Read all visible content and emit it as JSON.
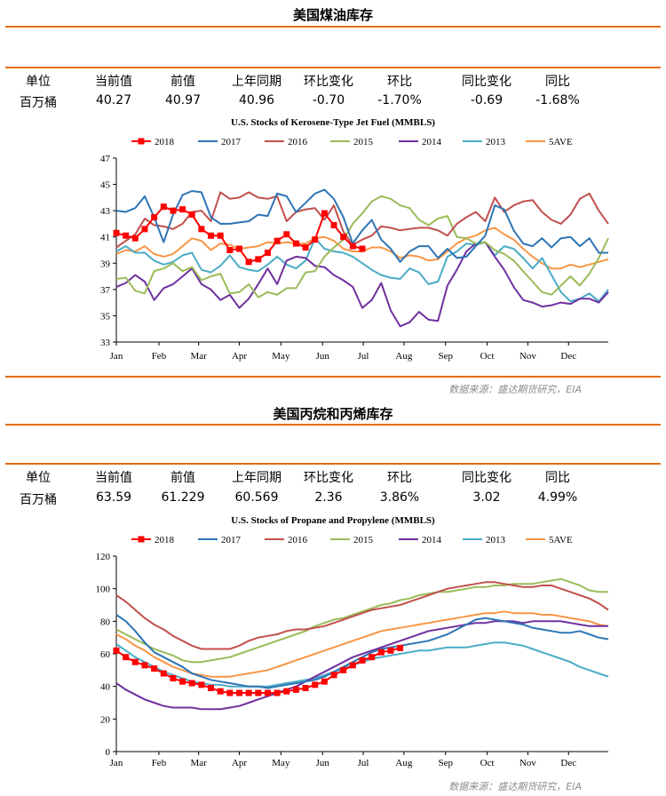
{
  "panels": [
    {
      "section_title": "美国煤油库存",
      "header": [
        "单位",
        "当前值",
        "前值",
        "上年同期",
        "环比变化",
        "环比",
        "同比变化",
        "同比"
      ],
      "values": [
        "百万桶",
        "40.27",
        "40.97",
        "40.96",
        "-0.70",
        "-1.70%",
        "-0.69",
        "-1.68%"
      ],
      "source": "数据来源：盛达期货研究，EIA",
      "chart_data": {
        "type": "line",
        "title": "U.S. Stocks of Kerosene-Type Jet Fuel (MMBLS)",
        "xlabel": "",
        "ylabel": "",
        "ylim": [
          33,
          47
        ],
        "yticks": [
          33,
          35,
          37,
          39,
          41,
          43,
          45,
          47
        ],
        "xlim": [
          1,
          53
        ],
        "x_ticks": [
          {
            "label": "Jan",
            "week": 1
          },
          {
            "label": "Feb",
            "week": 5.5
          },
          {
            "label": "Mar",
            "week": 9.7
          },
          {
            "label": "Apr",
            "week": 14
          },
          {
            "label": "May",
            "week": 18.4
          },
          {
            "label": "Jun",
            "week": 22.8
          },
          {
            "label": "Jul",
            "week": 27.1
          },
          {
            "label": "Aug",
            "week": 31.4
          },
          {
            "label": "Sep",
            "week": 35.8
          },
          {
            "label": "Oct",
            "week": 40.2
          },
          {
            "label": "Nov",
            "week": 44.5
          },
          {
            "label": "Dec",
            "week": 48.8
          }
        ],
        "legend_position": "top",
        "grid": false,
        "series": [
          {
            "name": "2018",
            "color": "#ff0000",
            "marker": "square",
            "x_start": 1,
            "values": [
              41.3,
              41.1,
              40.9,
              41.6,
              42.5,
              43.3,
              43.0,
              43.1,
              42.7,
              41.6,
              41.1,
              41.1,
              40.0,
              40.1,
              39.1,
              39.3,
              39.8,
              40.7,
              41.2,
              40.5,
              40.2,
              40.8,
              42.8,
              41.9,
              41.0,
              40.3,
              40.1
            ]
          },
          {
            "name": "2017",
            "color": "#2e75b6",
            "marker": "none",
            "x_start": 1,
            "values": [
              43.0,
              42.9,
              43.2,
              44.1,
              42.5,
              40.6,
              42.7,
              44.2,
              44.5,
              44.4,
              42.5,
              42.0,
              42.0,
              42.1,
              42.2,
              42.7,
              42.6,
              44.3,
              44.1,
              42.9,
              43.6,
              44.3,
              44.6,
              43.9,
              42.5,
              40.5,
              41.5,
              42.3,
              40.8,
              40.1,
              39.1,
              39.9,
              40.3,
              40.3,
              39.4,
              40.1,
              39.4,
              39.5,
              40.3,
              41.1,
              43.4,
              43.1,
              41.5,
              40.5,
              40.3,
              40.9,
              40.2,
              40.9,
              41.0,
              40.3,
              40.9,
              39.8,
              39.8
            ]
          },
          {
            "name": "2016",
            "color": "#c0504d",
            "marker": "none",
            "x_start": 1,
            "values": [
              40.2,
              40.7,
              41.2,
              42.4,
              41.9,
              41.8,
              41.6,
              42.0,
              42.9,
              43.0,
              42.2,
              44.4,
              43.9,
              44.0,
              44.4,
              44.0,
              43.9,
              44.1,
              42.2,
              42.9,
              43.1,
              43.2,
              42.3,
              43.4,
              41.4,
              40.4,
              40.8,
              41.1,
              41.8,
              41.7,
              41.5,
              41.6,
              41.7,
              41.7,
              41.5,
              41.1,
              42.0,
              42.5,
              42.9,
              42.2,
              44.0,
              42.9,
              43.4,
              43.7,
              43.8,
              42.9,
              42.3,
              42.0,
              42.7,
              43.9,
              44.3,
              43.0,
              42.0
            ]
          },
          {
            "name": "2015",
            "color": "#9bbb59",
            "marker": "none",
            "x_start": 1,
            "values": [
              37.8,
              37.9,
              36.9,
              36.7,
              38.4,
              38.6,
              39.0,
              38.4,
              38.7,
              37.7,
              38.0,
              38.2,
              36.7,
              36.8,
              37.4,
              36.4,
              36.8,
              36.6,
              37.1,
              37.1,
              38.3,
              38.4,
              39.5,
              40.2,
              40.8,
              42.0,
              42.8,
              43.7,
              44.1,
              43.9,
              43.4,
              43.2,
              42.3,
              41.9,
              42.4,
              42.6,
              41.0,
              40.9,
              40.5,
              40.6,
              40.0,
              39.7,
              39.2,
              38.4,
              37.6,
              36.8,
              36.6,
              37.3,
              38.0,
              37.3,
              38.2,
              39.4,
              40.9
            ]
          },
          {
            "name": "2014",
            "color": "#7030a0",
            "marker": "none",
            "x_start": 1,
            "values": [
              37.2,
              37.5,
              38.1,
              37.6,
              36.2,
              37.1,
              37.4,
              38.0,
              38.6,
              37.4,
              37.0,
              36.2,
              36.6,
              35.6,
              36.3,
              37.4,
              38.6,
              37.4,
              39.2,
              39.5,
              39.4,
              38.8,
              38.7,
              38.1,
              37.7,
              37.2,
              35.6,
              36.2,
              37.5,
              35.4,
              34.2,
              34.5,
              35.3,
              34.7,
              34.6,
              37.3,
              38.5,
              39.9,
              40.5,
              40.6,
              39.5,
              38.5,
              37.2,
              36.2,
              36.0,
              35.7,
              35.8,
              36.0,
              35.9,
              36.3,
              36.3,
              36.0,
              36.8
            ]
          },
          {
            "name": "2013",
            "color": "#4bacc6",
            "marker": "none",
            "x_start": 1,
            "values": [
              39.9,
              40.3,
              39.8,
              39.8,
              39.2,
              38.9,
              39.1,
              39.6,
              39.8,
              38.5,
              38.3,
              38.8,
              39.6,
              38.7,
              38.5,
              38.4,
              38.9,
              39.5,
              38.9,
              38.6,
              39.2,
              40.9,
              40.1,
              39.9,
              39.8,
              39.5,
              39.0,
              38.5,
              38.1,
              37.9,
              37.8,
              38.6,
              38.3,
              37.4,
              37.6,
              39.5,
              39.9,
              40.5,
              40.4,
              40.6,
              39.6,
              40.3,
              40.1,
              39.4,
              38.6,
              39.4,
              38.1,
              36.8,
              36.1,
              36.3,
              36.7,
              36.1,
              37.0
            ]
          },
          {
            "name": "5AVE",
            "color": "#f79646",
            "marker": "none",
            "x_start": 1,
            "values": [
              39.7,
              40.0,
              39.9,
              40.3,
              39.7,
              39.5,
              39.7,
              40.3,
              40.9,
              40.7,
              40.0,
              40.5,
              40.4,
              40.1,
              40.2,
              40.3,
              40.6,
              40.5,
              40.6,
              40.5,
              40.5,
              40.9,
              41.0,
              40.7,
              40.1,
              39.9,
              39.9,
              40.2,
              40.2,
              39.9,
              39.4,
              39.6,
              39.5,
              39.2,
              39.3,
              39.9,
              40.5,
              40.9,
              41.1,
              41.5,
              41.7,
              41.2,
              40.8,
              40.1,
              39.5,
              39.0,
              38.6,
              38.6,
              38.9,
              38.7,
              38.9,
              39.1,
              39.3
            ]
          }
        ]
      }
    },
    {
      "section_title": "美国丙烷和丙烯库存",
      "header": [
        "单位",
        "当前值",
        "前值",
        "上年同期",
        "环比变化",
        "环比",
        "同比变化",
        "同比"
      ],
      "values": [
        "百万桶",
        "63.59",
        "61.229",
        "60.569",
        "2.36",
        "3.86%",
        "3.02",
        "4.99%"
      ],
      "source": "数据来源：盛达期货研究，EIA",
      "chart_data": {
        "type": "line",
        "title": "U.S. Stocks of Propane and Propylene (MMBLS)",
        "xlabel": "",
        "ylabel": "",
        "ylim": [
          0,
          120
        ],
        "yticks": [
          0,
          20,
          40,
          60,
          80,
          100,
          120
        ],
        "xlim": [
          1,
          53
        ],
        "x_ticks": [
          {
            "label": "Jan",
            "week": 1
          },
          {
            "label": "Feb",
            "week": 5.5
          },
          {
            "label": "Mar",
            "week": 9.7
          },
          {
            "label": "Apr",
            "week": 14
          },
          {
            "label": "May",
            "week": 18.4
          },
          {
            "label": "Jun",
            "week": 22.8
          },
          {
            "label": "Jul",
            "week": 27.1
          },
          {
            "label": "Aug",
            "week": 31.4
          },
          {
            "label": "Sep",
            "week": 35.8
          },
          {
            "label": "Oct",
            "week": 40.2
          },
          {
            "label": "Nov",
            "week": 44.5
          },
          {
            "label": "Dec",
            "week": 48.8
          }
        ],
        "legend_position": "top",
        "grid": false,
        "series": [
          {
            "name": "2018",
            "color": "#ff0000",
            "marker": "square",
            "x_start": 1,
            "values": [
              62,
              58,
              55,
              53,
              51,
              48,
              45,
              43,
              42,
              41,
              39,
              37,
              36,
              36,
              36,
              36,
              36,
              36,
              37,
              38,
              39,
              41,
              43,
              47,
              50,
              53,
              56,
              58,
              61,
              62,
              63.6
            ]
          },
          {
            "name": "2017",
            "color": "#2e75b6",
            "marker": "none",
            "x_start": 1,
            "values": [
              84,
              80,
              74,
              67,
              61,
              58,
              55,
              52,
              48,
              46,
              44,
              43,
              42,
              41,
              40,
              40,
              39,
              40,
              41,
              42,
              43,
              44,
              46,
              49,
              52,
              55,
              58,
              61,
              63,
              64,
              65,
              66,
              67,
              68,
              70,
              72,
              75,
              78,
              81,
              82,
              81,
              80,
              79,
              78,
              76,
              75,
              74,
              73,
              73,
              74,
              72,
              70,
              69
            ]
          },
          {
            "name": "2016",
            "color": "#c0504d",
            "marker": "none",
            "x_start": 1,
            "values": [
              96,
              92,
              87,
              82,
              78,
              75,
              71,
              68,
              65,
              63,
              63,
              63,
              63,
              65,
              68,
              70,
              71,
              72,
              74,
              75,
              75,
              76,
              77,
              79,
              81,
              83,
              85,
              87,
              88,
              89,
              90,
              92,
              94,
              96,
              98,
              100,
              101,
              102,
              103,
              104,
              104,
              103,
              102,
              101,
              101,
              102,
              102,
              100,
              98,
              96,
              94,
              91,
              87
            ]
          },
          {
            "name": "2015",
            "color": "#9bbb59",
            "marker": "none",
            "x_start": 1,
            "values": [
              75,
              72,
              69,
              66,
              63,
              61,
              59,
              56,
              55,
              55,
              56,
              57,
              58,
              60,
              62,
              64,
              66,
              68,
              70,
              72,
              74,
              77,
              79,
              81,
              82,
              84,
              86,
              88,
              90,
              91,
              93,
              94,
              96,
              97,
              98,
              98,
              99,
              100,
              101,
              101,
              102,
              102,
              103,
              103,
              103,
              104,
              105,
              106,
              104,
              102,
              99,
              98,
              98
            ]
          },
          {
            "name": "2014",
            "color": "#7030a0",
            "marker": "none",
            "x_start": 1,
            "values": [
              42,
              38,
              35,
              32,
              30,
              28,
              27,
              27,
              27,
              26,
              26,
              26,
              27,
              28,
              30,
              32,
              34,
              36,
              38,
              40,
              43,
              46,
              49,
              52,
              55,
              58,
              60,
              62,
              64,
              66,
              68,
              70,
              72,
              74,
              75,
              76,
              77,
              78,
              79,
              79,
              80,
              80,
              80,
              79,
              80,
              80,
              80,
              80,
              79,
              78,
              77,
              77,
              77
            ]
          },
          {
            "name": "2013",
            "color": "#4bacc6",
            "marker": "none",
            "x_start": 1,
            "values": [
              66,
              62,
              58,
              55,
              52,
              49,
              47,
              45,
              43,
              42,
              41,
              41,
              40,
              40,
              40,
              40,
              40,
              41,
              42,
              43,
              44,
              45,
              47,
              49,
              51,
              53,
              55,
              57,
              58,
              59,
              60,
              61,
              62,
              62,
              63,
              64,
              64,
              64,
              65,
              66,
              67,
              67,
              66,
              65,
              63,
              61,
              59,
              57,
              55,
              52,
              50,
              48,
              46
            ]
          },
          {
            "name": "5AVE",
            "color": "#f79646",
            "marker": "none",
            "x_start": 1,
            "values": [
              72,
              69,
              65,
              62,
              58,
              55,
              52,
              50,
              48,
              47,
              46,
              46,
              46,
              47,
              48,
              49,
              50,
              52,
              54,
              56,
              58,
              60,
              62,
              64,
              66,
              68,
              70,
              72,
              74,
              75,
              76,
              77,
              78,
              79,
              80,
              81,
              82,
              83,
              84,
              85,
              85,
              86,
              85,
              85,
              85,
              84,
              84,
              83,
              82,
              81,
              80,
              78,
              77
            ]
          }
        ]
      }
    }
  ]
}
